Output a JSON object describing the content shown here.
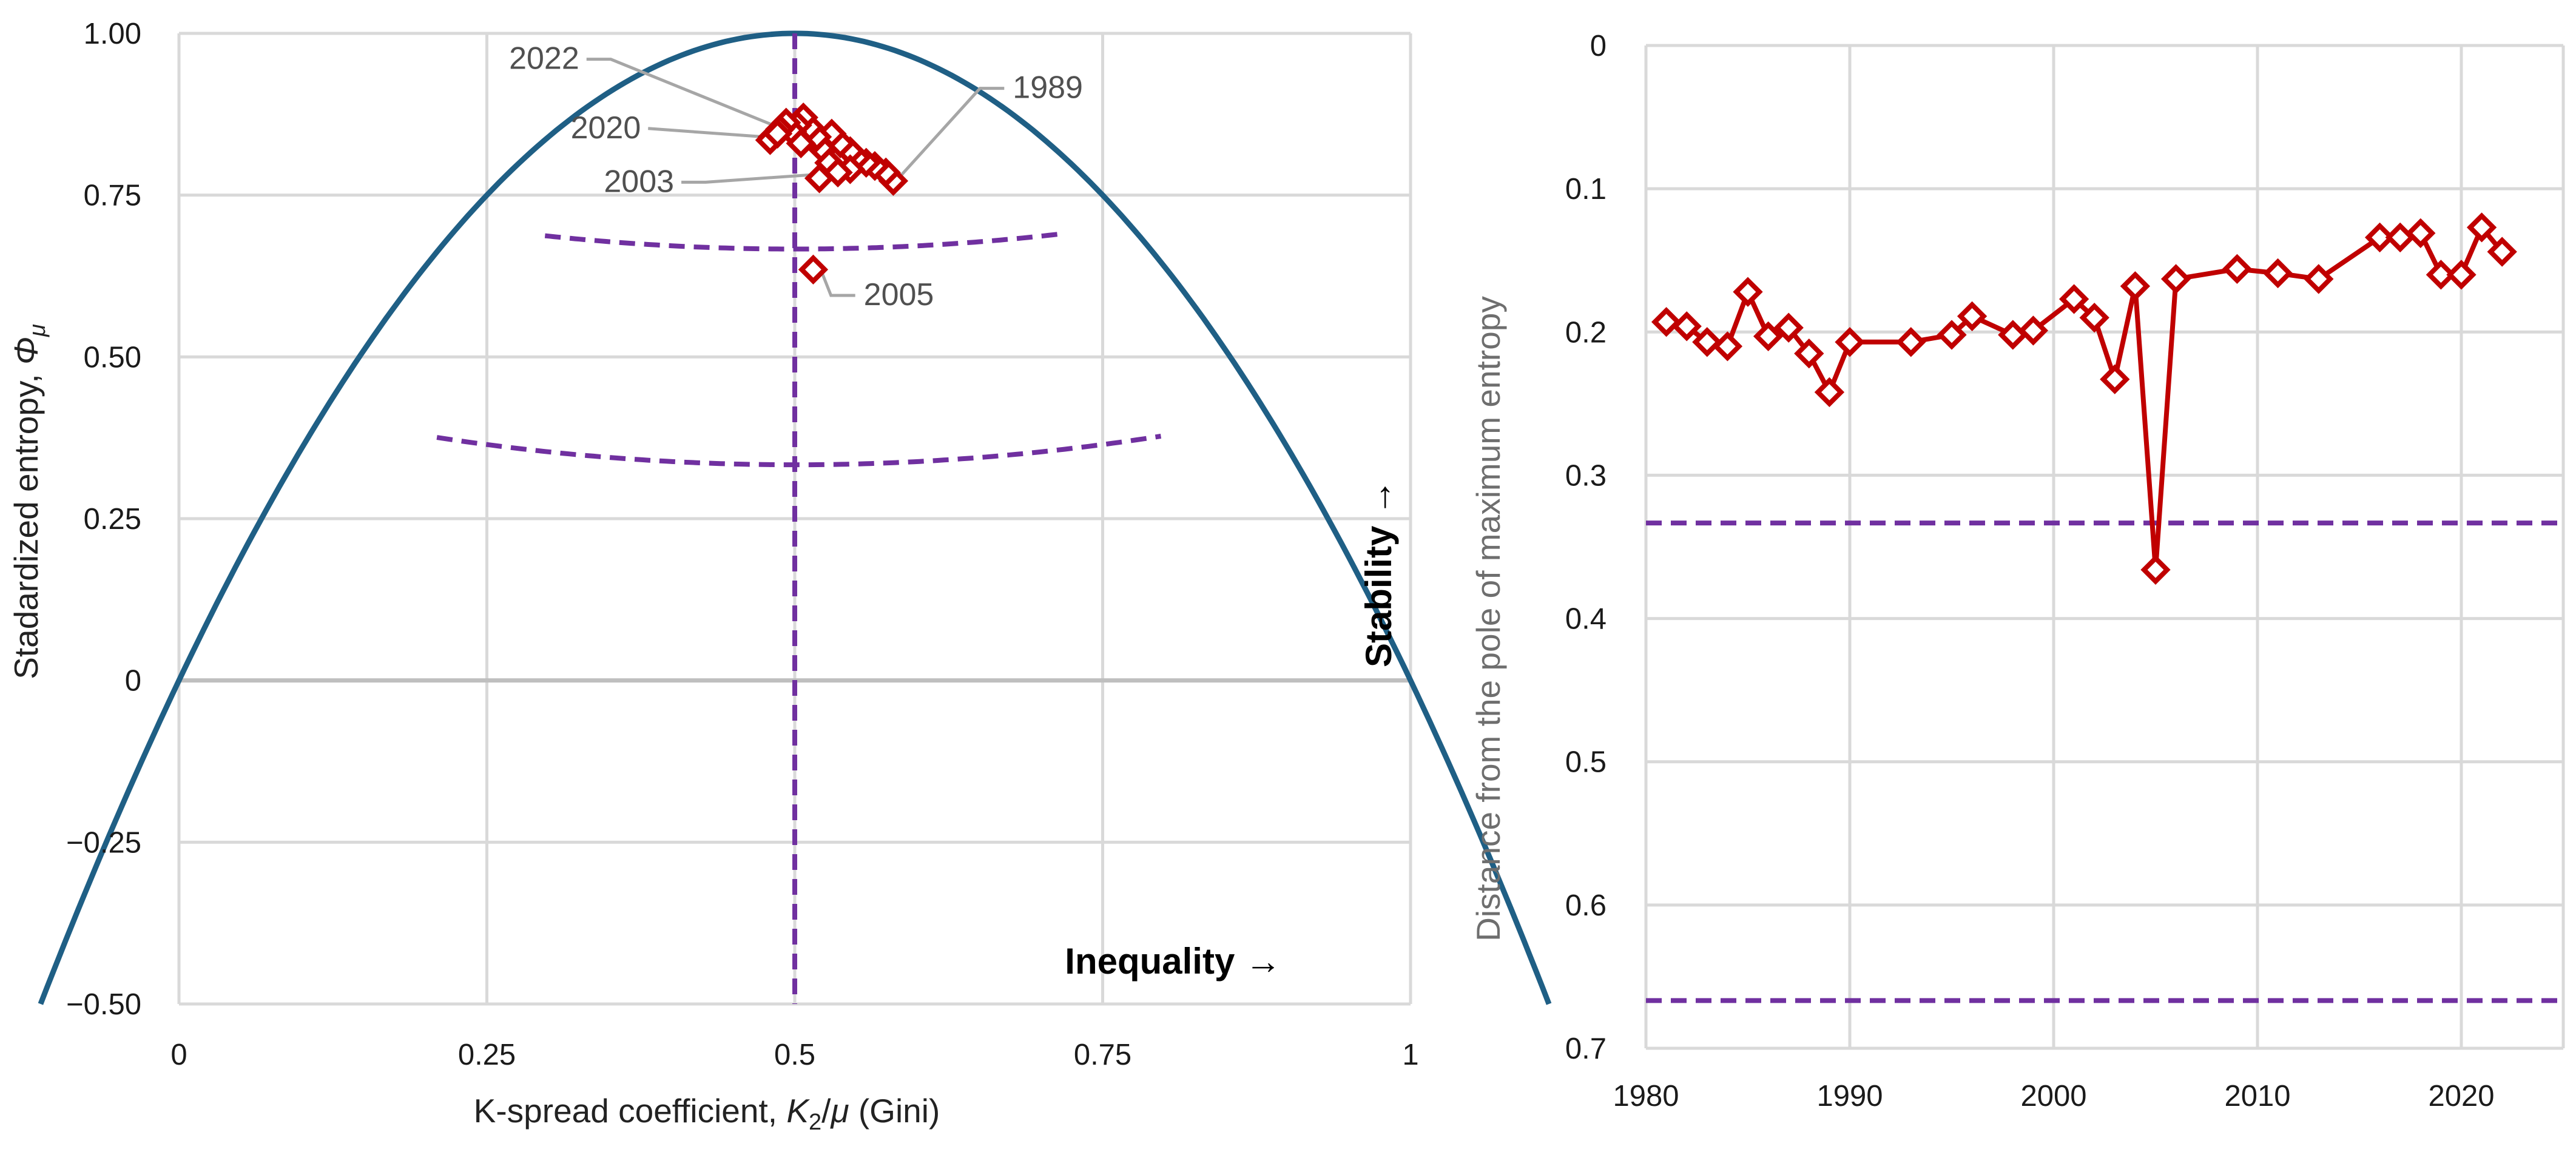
{
  "colors": {
    "parabola": "#1f5f85",
    "markers": "#c00000",
    "guide": "#7030a0",
    "grid": "#d9d9d9",
    "axis": "#bfbfbf",
    "leader": "#a6a6a6"
  },
  "chart_data": [
    {
      "type": "scatter",
      "xlabel_prefix": "K-spread coefficient, ",
      "xlabel_symbol": "K",
      "xlabel_sub": "2",
      "xlabel_mid": "/",
      "xlabel_mu": "μ",
      "xlabel_suffix": " (Gini)",
      "ylabel_prefix": "Stadardized entropy, ",
      "ylabel_symbol": "Φ",
      "ylabel_sub": "μ",
      "xlim": [
        0,
        1
      ],
      "ylim": [
        -0.5,
        1.0
      ],
      "xticks": [
        0,
        0.25,
        0.5,
        0.75,
        1
      ],
      "xtick_labels": [
        "0",
        "0.25",
        "0.5",
        "0.75",
        "1"
      ],
      "yticks": [
        1.0,
        0.75,
        0.5,
        0.25,
        0,
        -0.25,
        -0.5
      ],
      "ytick_labels": [
        "1.00",
        "0.75",
        "0.50",
        "0.25",
        "0",
        "−0.25",
        "−0.50"
      ],
      "boundary_curve": "Φ = 1 − 4(x − 0.5)²",
      "guide_vertical_x": 0.5,
      "guide_arcs": [
        {
          "r": 0.3333,
          "x_range": [
            0.2972,
            0.7164
          ]
        },
        {
          "r": 0.6667,
          "x_range": [
            0.2094,
            0.7973
          ]
        }
      ],
      "points": [
        {
          "x": 0.58,
          "y": 0.772
        },
        {
          "x": 0.574,
          "y": 0.785
        },
        {
          "x": 0.565,
          "y": 0.795
        },
        {
          "x": 0.558,
          "y": 0.8
        },
        {
          "x": 0.55,
          "y": 0.808
        },
        {
          "x": 0.545,
          "y": 0.818
        },
        {
          "x": 0.537,
          "y": 0.83
        },
        {
          "x": 0.545,
          "y": 0.79
        },
        {
          "x": 0.53,
          "y": 0.845
        },
        {
          "x": 0.523,
          "y": 0.82
        },
        {
          "x": 0.528,
          "y": 0.8
        },
        {
          "x": 0.535,
          "y": 0.785
        },
        {
          "x": 0.518,
          "y": 0.84
        },
        {
          "x": 0.512,
          "y": 0.855
        },
        {
          "x": 0.507,
          "y": 0.87
        },
        {
          "x": 0.502,
          "y": 0.858
        },
        {
          "x": 0.498,
          "y": 0.848
        },
        {
          "x": 0.505,
          "y": 0.83
        },
        {
          "x": 0.52,
          "y": 0.776
        },
        {
          "x": 0.515,
          "y": 0.635
        },
        {
          "x": 0.493,
          "y": 0.862
        },
        {
          "x": 0.488,
          "y": 0.852
        },
        {
          "x": 0.482,
          "y": 0.84
        },
        {
          "x": 0.48,
          "y": 0.835
        },
        {
          "x": 0.486,
          "y": 0.845
        }
      ],
      "annotations": [
        {
          "label": "2022",
          "point": {
            "x": 0.488,
            "y": 0.852
          },
          "text_at": {
            "x": 0.325,
            "y": 0.945
          },
          "anchor": "end"
        },
        {
          "label": "2020",
          "point": {
            "x": 0.482,
            "y": 0.84
          },
          "text_at": {
            "x": 0.375,
            "y": 0.838
          },
          "anchor": "start-left"
        },
        {
          "label": "2003",
          "point": {
            "x": 0.52,
            "y": 0.776
          },
          "text_at": {
            "x": 0.402,
            "y": 0.755
          },
          "anchor": "end"
        },
        {
          "label": "1989",
          "point": {
            "x": 0.58,
            "y": 0.772
          },
          "text_at": {
            "x": 0.677,
            "y": 0.9
          },
          "anchor": "start"
        },
        {
          "label": "2005",
          "point": {
            "x": 0.515,
            "y": 0.635
          },
          "text_at": {
            "x": 0.556,
            "y": 0.58
          },
          "anchor": "start"
        }
      ],
      "directional_labels": {
        "x": "Inequality →",
        "y": "Stability →"
      }
    },
    {
      "type": "line",
      "ylabel": "Distance from the pole of maximum entropy",
      "xlim": [
        1980,
        2025
      ],
      "ylim": [
        0,
        0.7
      ],
      "y_inverted": true,
      "xticks": [
        1980,
        1990,
        2000,
        2010,
        2020
      ],
      "xtick_labels": [
        "1980",
        "1990",
        "2000",
        "2010",
        "2020"
      ],
      "yticks": [
        0,
        0.1,
        0.2,
        0.3,
        0.4,
        0.5,
        0.6,
        0.7
      ],
      "ytick_labels": [
        "0",
        "0.1",
        "0.2",
        "0.3",
        "0.4",
        "0.5",
        "0.6",
        "0.7"
      ],
      "guide_lines_y": [
        0.3333,
        0.6667
      ],
      "series": [
        {
          "name": "Distance",
          "x": [
            1981,
            1982,
            1983,
            1984,
            1985,
            1986,
            1987,
            1988,
            1989,
            1990,
            1993,
            1995,
            1996,
            1998,
            1999,
            2001,
            2002,
            2003,
            2004,
            2005,
            2006,
            2009,
            2011,
            2013,
            2016,
            2017,
            2018,
            2019,
            2020,
            2021,
            2022
          ],
          "y": [
            0.193,
            0.196,
            0.207,
            0.21,
            0.172,
            0.203,
            0.197,
            0.215,
            0.242,
            0.207,
            0.207,
            0.202,
            0.189,
            0.202,
            0.199,
            0.177,
            0.19,
            0.233,
            0.168,
            0.366,
            0.163,
            0.156,
            0.159,
            0.163,
            0.134,
            0.134,
            0.131,
            0.16,
            0.16,
            0.127,
            0.144
          ]
        }
      ]
    }
  ]
}
